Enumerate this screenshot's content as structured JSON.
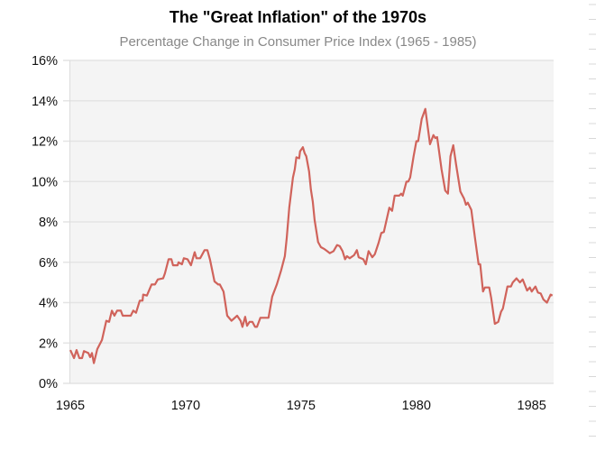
{
  "chart_data": {
    "type": "line",
    "title": "The \"Great Inflation\" of the 1970s",
    "subtitle": "Percentage Change in Consumer Price Index (1965 - 1985)",
    "xlabel": "",
    "ylabel": "",
    "xlim": [
      1965,
      1985.95
    ],
    "ylim": [
      0,
      16
    ],
    "x_ticks": [
      1965,
      1970,
      1975,
      1980,
      1985
    ],
    "x_tick_labels": [
      "1965",
      "1970",
      "1975",
      "1980",
      "1985"
    ],
    "y_ticks": [
      0,
      2,
      4,
      6,
      8,
      10,
      12,
      14,
      16
    ],
    "y_tick_labels": [
      "0%",
      "2%",
      "4%",
      "6%",
      "8%",
      "10%",
      "12%",
      "14%",
      "16%"
    ],
    "grid": "horizontal",
    "colors": {
      "line": "#d0635b",
      "plot_background": "#f4f4f4",
      "grid": "#e4e4e4"
    },
    "series": [
      {
        "x": [
          1965.0,
          1965.16,
          1965.27,
          1965.39,
          1965.51,
          1965.59,
          1965.78,
          1965.86,
          1965.94,
          1966.02,
          1966.17,
          1966.37,
          1966.56,
          1966.68,
          1966.8,
          1966.91,
          1967.03,
          1967.19,
          1967.27,
          1967.62,
          1967.73,
          1967.85,
          1968.01,
          1968.13,
          1968.16,
          1968.32,
          1968.52,
          1968.67,
          1968.79,
          1969.02,
          1969.1,
          1969.26,
          1969.38,
          1969.45,
          1969.65,
          1969.69,
          1969.84,
          1969.92,
          1970.08,
          1970.23,
          1970.39,
          1970.47,
          1970.63,
          1970.82,
          1970.94,
          1971.05,
          1971.25,
          1971.41,
          1971.48,
          1971.64,
          1971.8,
          1971.99,
          1972.23,
          1972.38,
          1972.46,
          1972.58,
          1972.66,
          1972.77,
          1972.89,
          1973.01,
          1973.09,
          1973.24,
          1973.59,
          1973.75,
          1973.95,
          1974.14,
          1974.3,
          1974.38,
          1974.49,
          1974.65,
          1974.73,
          1974.8,
          1974.92,
          1974.96,
          1975.08,
          1975.16,
          1975.23,
          1975.35,
          1975.43,
          1975.51,
          1975.59,
          1975.74,
          1975.86,
          1976.02,
          1976.13,
          1976.25,
          1976.41,
          1976.56,
          1976.68,
          1976.8,
          1976.91,
          1976.99,
          1977.11,
          1977.3,
          1977.42,
          1977.5,
          1977.7,
          1977.81,
          1977.93,
          1978.09,
          1978.2,
          1978.36,
          1978.48,
          1978.59,
          1978.83,
          1978.95,
          1979.06,
          1979.26,
          1979.34,
          1979.41,
          1979.57,
          1979.65,
          1979.73,
          1979.88,
          1980.0,
          1980.08,
          1980.23,
          1980.39,
          1980.59,
          1980.74,
          1980.82,
          1980.9,
          1981.09,
          1981.25,
          1981.37,
          1981.48,
          1981.6,
          1981.72,
          1981.91,
          1982.07,
          1982.15,
          1982.23,
          1982.38,
          1982.54,
          1982.7,
          1982.77,
          1982.89,
          1982.97,
          1983.16,
          1983.24,
          1983.4,
          1983.55,
          1983.67,
          1983.75,
          1983.95,
          1984.1,
          1984.18,
          1984.34,
          1984.49,
          1984.61,
          1984.8,
          1984.92,
          1985.0,
          1985.16,
          1985.27,
          1985.39,
          1985.51,
          1985.66,
          1985.82,
          1985.9
        ],
        "y": [
          1.65,
          1.25,
          1.65,
          1.25,
          1.25,
          1.6,
          1.5,
          1.3,
          1.5,
          1.0,
          1.7,
          2.15,
          3.1,
          3.05,
          3.6,
          3.35,
          3.6,
          3.6,
          3.35,
          3.35,
          3.6,
          3.5,
          4.1,
          4.1,
          4.4,
          4.35,
          4.9,
          4.9,
          5.15,
          5.2,
          5.45,
          6.15,
          6.15,
          5.85,
          5.85,
          6.0,
          5.9,
          6.2,
          6.15,
          5.85,
          6.5,
          6.2,
          6.2,
          6.6,
          6.6,
          6.15,
          5.05,
          4.9,
          4.9,
          4.55,
          3.35,
          3.1,
          3.35,
          3.1,
          2.8,
          3.3,
          2.85,
          3.05,
          3.05,
          2.8,
          2.8,
          3.25,
          3.25,
          4.3,
          4.9,
          5.6,
          6.3,
          7.2,
          8.7,
          10.2,
          10.6,
          11.2,
          11.15,
          11.5,
          11.7,
          11.4,
          11.25,
          10.5,
          9.6,
          9.0,
          8.1,
          7.0,
          6.75,
          6.65,
          6.55,
          6.45,
          6.55,
          6.85,
          6.8,
          6.55,
          6.15,
          6.3,
          6.2,
          6.35,
          6.6,
          6.25,
          6.15,
          5.9,
          6.55,
          6.25,
          6.4,
          6.95,
          7.45,
          7.5,
          8.7,
          8.55,
          9.3,
          9.3,
          9.4,
          9.3,
          10.0,
          10.0,
          10.2,
          11.25,
          12.0,
          12.0,
          13.1,
          13.6,
          11.85,
          12.3,
          12.15,
          12.2,
          10.6,
          9.55,
          9.4,
          11.25,
          11.8,
          10.85,
          9.5,
          9.15,
          8.85,
          8.95,
          8.6,
          7.2,
          5.9,
          5.9,
          4.55,
          4.75,
          4.75,
          4.25,
          2.95,
          3.05,
          3.55,
          3.7,
          4.8,
          4.8,
          5.0,
          5.2,
          5.0,
          5.15,
          4.6,
          4.75,
          4.55,
          4.8,
          4.5,
          4.45,
          4.15,
          4.0,
          4.4,
          4.35
        ]
      }
    ]
  }
}
